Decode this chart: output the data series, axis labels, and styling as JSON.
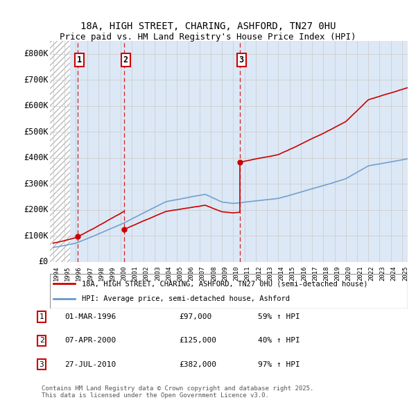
{
  "title_line1": "18A, HIGH STREET, CHARING, ASHFORD, TN27 0HU",
  "title_line2": "Price paid vs. HM Land Registry's House Price Index (HPI)",
  "ylabel_ticks": [
    "£0",
    "£100K",
    "£200K",
    "£300K",
    "£400K",
    "£500K",
    "£600K",
    "£700K",
    "£800K"
  ],
  "ytick_values": [
    0,
    100000,
    200000,
    300000,
    400000,
    500000,
    600000,
    700000,
    800000
  ],
  "ylim": [
    0,
    850000
  ],
  "xlim_start": 1993.7,
  "xlim_end": 2025.5,
  "transactions": [
    {
      "num": 1,
      "date_dec": 1996.17,
      "price": 97000,
      "label": "01-MAR-1996",
      "amount": "£97,000",
      "hpi_pct": "59% ↑ HPI"
    },
    {
      "num": 2,
      "date_dec": 2000.27,
      "price": 125000,
      "label": "07-APR-2000",
      "amount": "£125,000",
      "hpi_pct": "40% ↑ HPI"
    },
    {
      "num": 3,
      "date_dec": 2010.57,
      "price": 382000,
      "label": "27-JUL-2010",
      "amount": "£382,000",
      "hpi_pct": "97% ↑ HPI"
    }
  ],
  "legend_label_red": "18A, HIGH STREET, CHARING, ASHFORD, TN27 0HU (semi-detached house)",
  "legend_label_blue": "HPI: Average price, semi-detached house, Ashford",
  "footer_line1": "Contains HM Land Registry data © Crown copyright and database right 2025.",
  "footer_line2": "This data is licensed under the Open Government Licence v3.0.",
  "background_hatched_end": 1995.5,
  "red_color": "#cc0000",
  "blue_color": "#6699cc",
  "grid_color": "#cccccc",
  "dashed_line_color": "#cc0000",
  "bg_blue": "#dce8f5",
  "bg_hatch_color": "#bbbbbb"
}
